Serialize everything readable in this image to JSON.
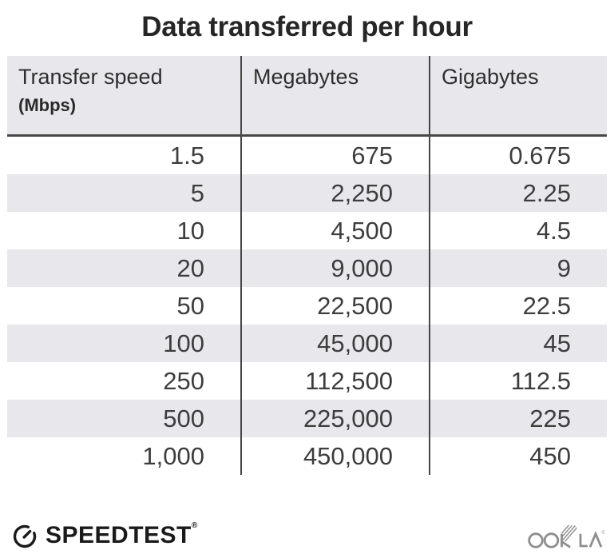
{
  "title": "Data transferred per hour",
  "table": {
    "columns": [
      {
        "label": "Transfer speed",
        "sublabel": "(Mbps)"
      },
      {
        "label": "Megabytes"
      },
      {
        "label": "Gigabytes"
      }
    ],
    "rows": [
      [
        "1.5",
        "675",
        "0.675"
      ],
      [
        "5",
        "2,250",
        "2.25"
      ],
      [
        "10",
        "4,500",
        "4.5"
      ],
      [
        "20",
        "9,000",
        "9"
      ],
      [
        "50",
        "22,500",
        "22.5"
      ],
      [
        "100",
        "45,000",
        "45"
      ],
      [
        "250",
        "112,500",
        "112.5"
      ],
      [
        "500",
        "225,000",
        "225"
      ],
      [
        "1,000",
        "450,000",
        "450"
      ]
    ]
  },
  "footer": {
    "speedtest_label": "SPEEDTEST",
    "speedtest_trademark": "®",
    "ookla_label": "OOKLA",
    "ookla_trademark": "®"
  },
  "colors": {
    "header_and_stripe_bg": "#e8e7eb",
    "divider_line": "#474747",
    "title_text": "#262626",
    "cell_text": "#3d3d3d",
    "speedtest_black": "#1a1a1a",
    "ookla_gray": "#8e8e8e"
  },
  "chart_data": {
    "type": "table",
    "title": "Data transferred per hour",
    "columns": [
      "Transfer speed (Mbps)",
      "Megabytes",
      "Gigabytes"
    ],
    "rows": [
      [
        1.5,
        675,
        0.675
      ],
      [
        5,
        2250,
        2.25
      ],
      [
        10,
        4500,
        4.5
      ],
      [
        20,
        9000,
        9
      ],
      [
        50,
        22500,
        22.5
      ],
      [
        100,
        45000,
        45
      ],
      [
        250,
        112500,
        112.5
      ],
      [
        500,
        225000,
        225
      ],
      [
        1000,
        450000,
        450
      ]
    ]
  }
}
